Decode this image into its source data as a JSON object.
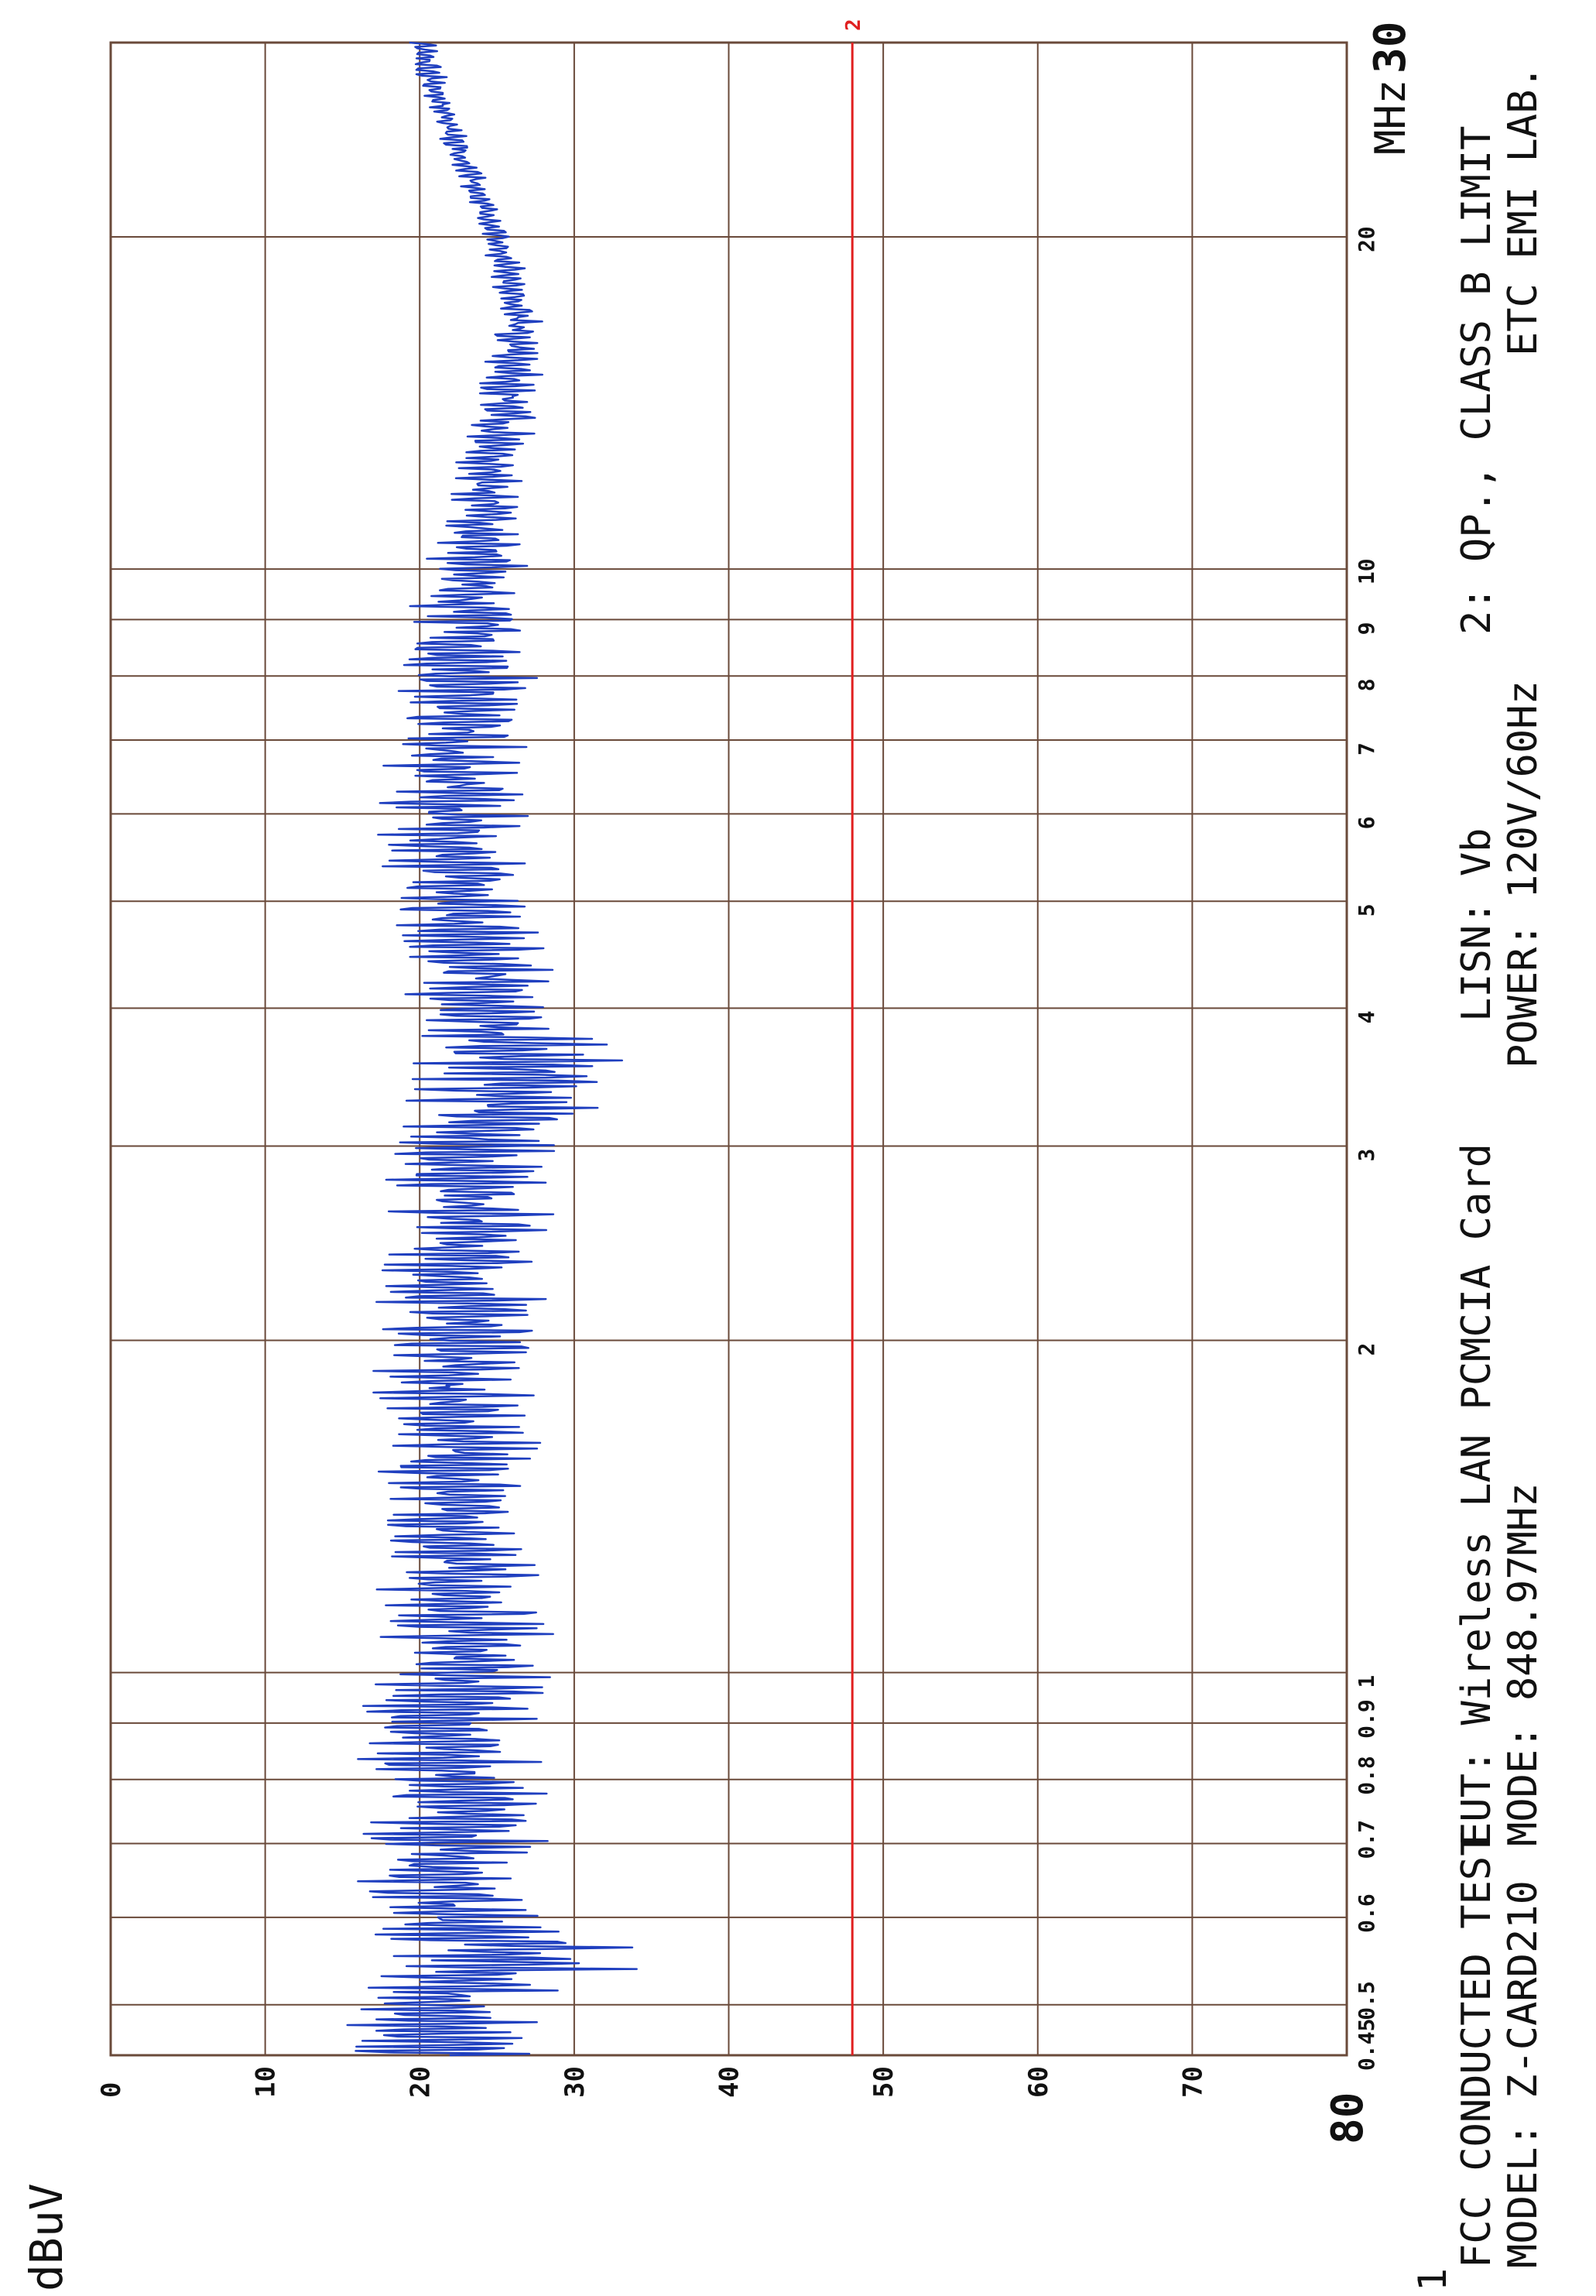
{
  "y_unit_label": "dBuV",
  "footer": {
    "legend_line": "1",
    "line1": {
      "test": "FCC CONDUCTED TEST",
      "eut": "EUT: Wireless LAN PCMCIA Card",
      "lisn": "LISN: Vb",
      "limit": "2: QP., CLASS B LIMIT"
    },
    "line2": {
      "model": "MODEL: Z-CARD210",
      "mode": "MODE: 848.97MHz",
      "power": "POWER: 120V/60Hz",
      "lab": "ETC EMI LAB."
    }
  },
  "colors": {
    "trace": "#1f3fbf",
    "limit": "#e02020",
    "grid": "#6a4a3a"
  },
  "chart_data": {
    "type": "line",
    "title": "",
    "xlabel": "MHz",
    "ylabel": "dBuV",
    "x_scale": "log",
    "xlim": [
      0.45,
      30
    ],
    "ylim": [
      0,
      80
    ],
    "x_ticks": [
      {
        "value": 0.45,
        "label": "0.45"
      },
      {
        "value": 0.5,
        "label": "0.5"
      },
      {
        "value": 0.6,
        "label": "0.6"
      },
      {
        "value": 0.7,
        "label": "0.7"
      },
      {
        "value": 0.8,
        "label": "0.8"
      },
      {
        "value": 0.9,
        "label": "0.9"
      },
      {
        "value": 1,
        "label": "1"
      },
      {
        "value": 2,
        "label": "2"
      },
      {
        "value": 3,
        "label": "3"
      },
      {
        "value": 4,
        "label": "4"
      },
      {
        "value": 5,
        "label": "5"
      },
      {
        "value": 6,
        "label": "6"
      },
      {
        "value": 7,
        "label": "7"
      },
      {
        "value": 8,
        "label": "8"
      },
      {
        "value": 9,
        "label": "9"
      },
      {
        "value": 10,
        "label": "10"
      },
      {
        "value": 20,
        "label": "20"
      },
      {
        "value": 30,
        "label": "30"
      }
    ],
    "x_unit_label": "MHz",
    "y_ticks": [
      {
        "value": 0,
        "label": "0"
      },
      {
        "value": 10,
        "label": "10"
      },
      {
        "value": 20,
        "label": "20"
      },
      {
        "value": 30,
        "label": "30"
      },
      {
        "value": 40,
        "label": "40"
      },
      {
        "value": 50,
        "label": "50"
      },
      {
        "value": 60,
        "label": "60"
      },
      {
        "value": 70,
        "label": "70"
      },
      {
        "value": 80,
        "label": "80"
      }
    ],
    "grid": true,
    "orientation": "rotated-90",
    "series": [
      {
        "name": "1",
        "style": "noisy-trace",
        "envelope": {
          "x": [
            0.45,
            0.47,
            0.5,
            0.55,
            0.6,
            0.7,
            0.8,
            0.9,
            1.0,
            1.5,
            2.0,
            3.0,
            3.5,
            4.0,
            5.0,
            6.0,
            7.0,
            8.0,
            9.0,
            10.0,
            12.0,
            15.0,
            17.0,
            20.0,
            25.0,
            30.0
          ],
          "low": [
            14,
            15,
            15,
            16,
            16,
            16,
            16,
            16,
            17,
            17,
            17,
            18,
            19,
            19,
            18,
            17,
            18,
            18,
            19,
            20,
            22,
            24,
            25,
            24,
            21,
            19
          ],
          "high": [
            30,
            28,
            27,
            36,
            28,
            29,
            28,
            28,
            29,
            28,
            28,
            29,
            34,
            30,
            27,
            27,
            27,
            28,
            28,
            27,
            27,
            28,
            28,
            26,
            23,
            21
          ]
        }
      },
      {
        "name": "2",
        "x": [
          0.45,
          30
        ],
        "y": [
          48,
          48
        ]
      }
    ]
  }
}
